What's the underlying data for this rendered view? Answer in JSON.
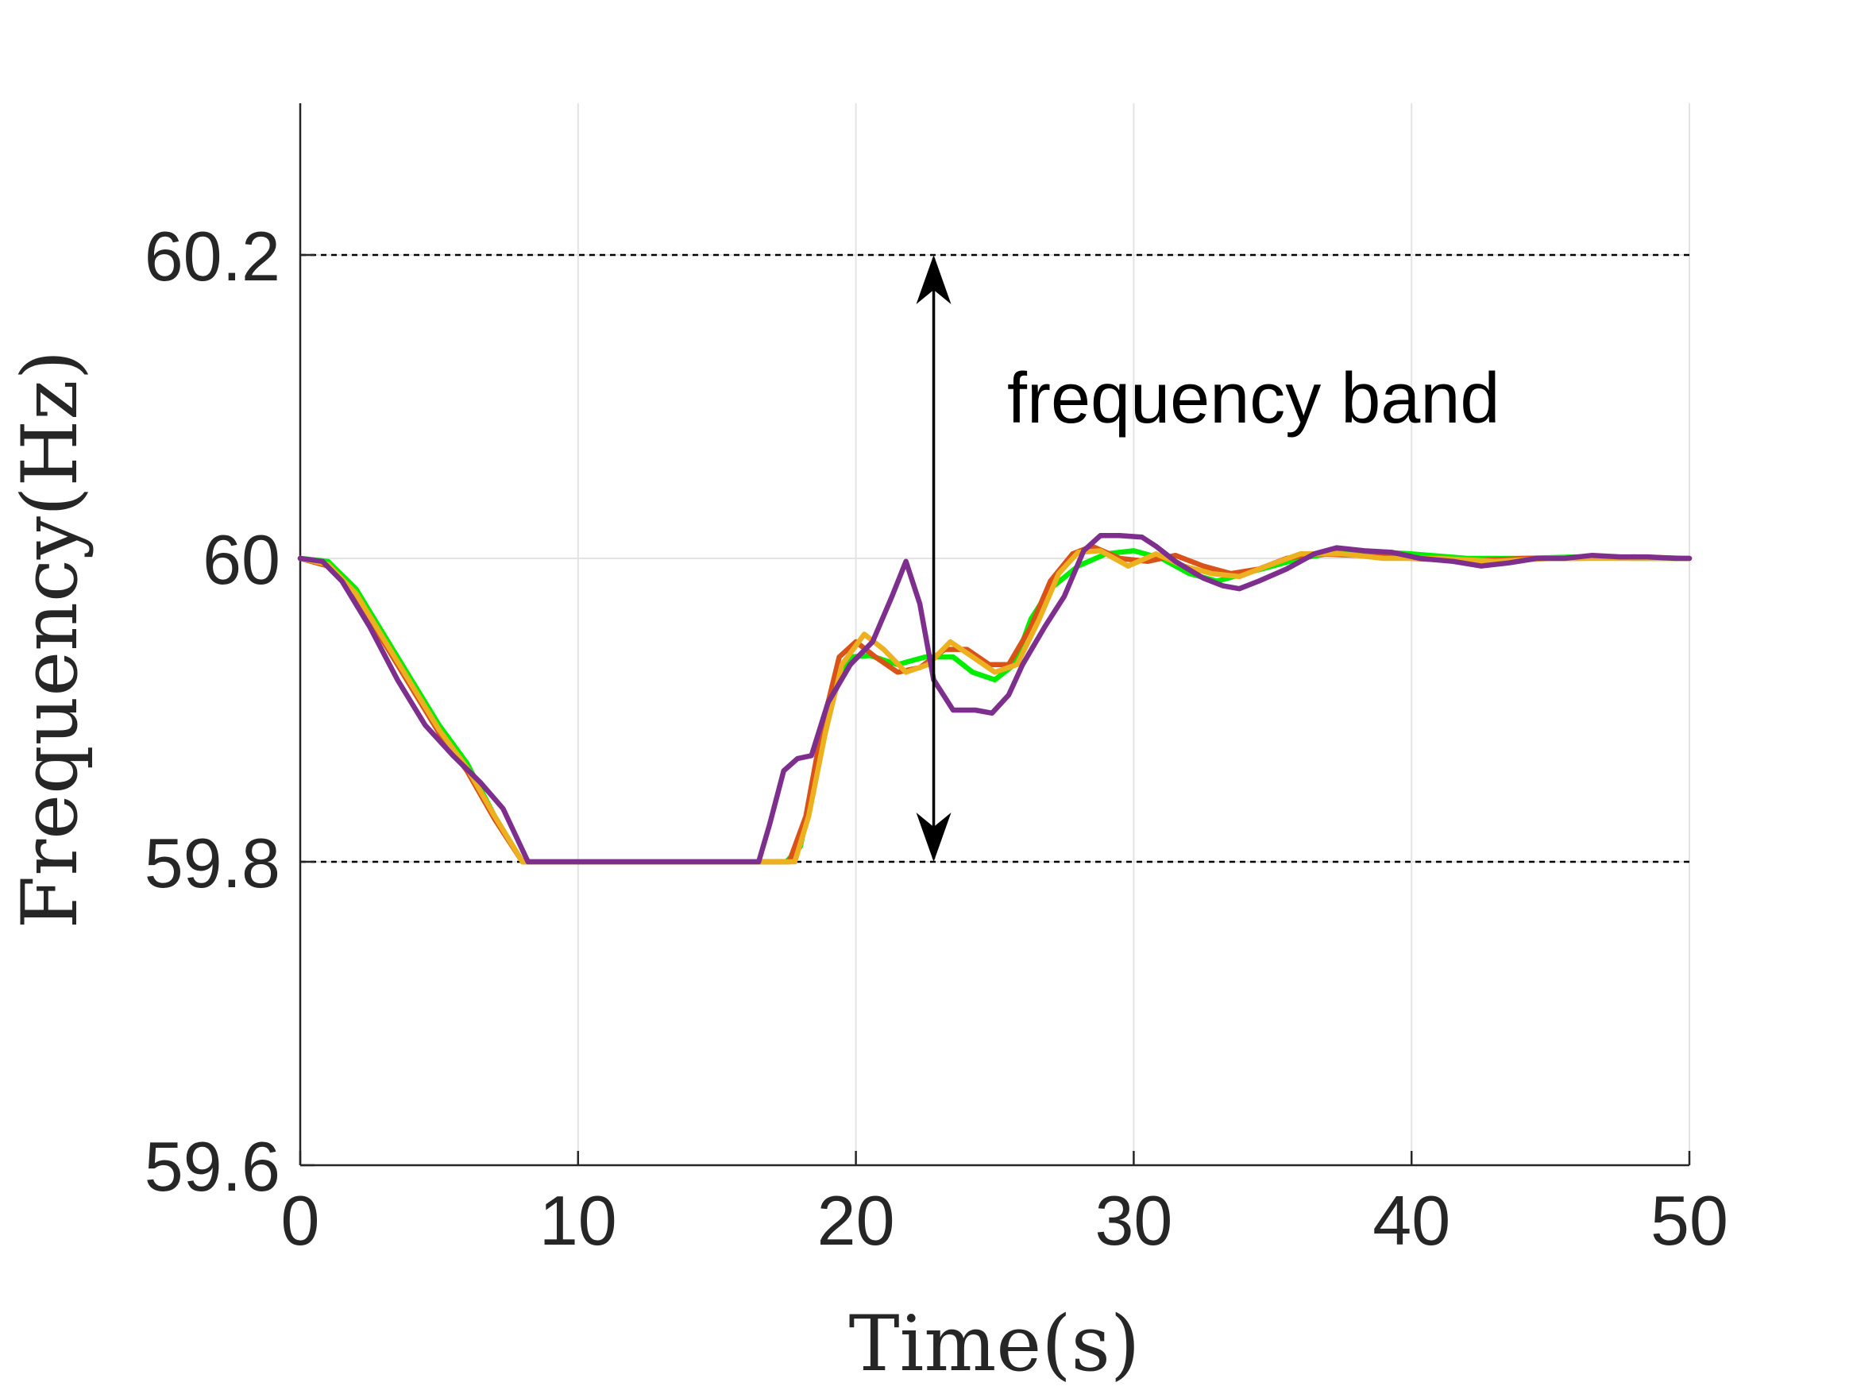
{
  "chart_data": {
    "type": "line",
    "xlabel": "Time(s)",
    "ylabel": "Frequency(Hz)",
    "xlim": [
      0,
      50
    ],
    "ylim": [
      59.6,
      60.3
    ],
    "x_ticks": [
      0,
      10,
      20,
      30,
      40,
      50
    ],
    "x_tick_labels": [
      "0",
      "10",
      "20",
      "30",
      "40",
      "50"
    ],
    "y_ticks": [
      59.6,
      59.8,
      60,
      60.2
    ],
    "y_tick_labels": [
      "59.6",
      "59.8",
      "60",
      "60.2"
    ],
    "grid": true,
    "reference_lines": [
      59.8,
      60.2
    ],
    "annotation": {
      "text": "frequency band",
      "arrow_x": 22.8,
      "arrow_from": 59.8,
      "arrow_to": 60.2
    },
    "series": [
      {
        "color": "#00ee00",
        "points": [
          [
            0,
            60
          ],
          [
            1,
            59.998
          ],
          [
            2,
            59.98
          ],
          [
            3,
            59.95
          ],
          [
            4,
            59.92
          ],
          [
            5,
            59.89
          ],
          [
            6,
            59.865
          ],
          [
            7,
            59.83
          ],
          [
            8,
            59.8
          ],
          [
            17.5,
            59.8
          ],
          [
            18,
            59.81
          ],
          [
            18.6,
            59.86
          ],
          [
            19.2,
            59.91
          ],
          [
            19.8,
            59.935
          ],
          [
            20.5,
            59.936
          ],
          [
            21.5,
            59.93
          ],
          [
            22.5,
            59.935
          ],
          [
            23.5,
            59.935
          ],
          [
            24.2,
            59.925
          ],
          [
            25,
            59.92
          ],
          [
            25.7,
            59.93
          ],
          [
            26.3,
            59.96
          ],
          [
            27,
            59.98
          ],
          [
            28,
            59.995
          ],
          [
            29,
            60.003
          ],
          [
            30,
            60.005
          ],
          [
            31,
            60.0
          ],
          [
            32,
            59.99
          ],
          [
            33,
            59.985
          ],
          [
            34,
            59.99
          ],
          [
            35,
            59.995
          ],
          [
            36,
            60.0
          ],
          [
            37,
            60.003
          ],
          [
            38,
            60.005
          ],
          [
            40,
            60.003
          ],
          [
            42,
            60.0
          ],
          [
            44,
            60.0
          ],
          [
            46,
            60.001
          ],
          [
            48,
            60.0
          ],
          [
            50,
            60.0
          ]
        ]
      },
      {
        "color": "#d95319",
        "points": [
          [
            0,
            60
          ],
          [
            1,
            59.995
          ],
          [
            2,
            59.975
          ],
          [
            3,
            59.945
          ],
          [
            4,
            59.915
          ],
          [
            5,
            59.885
          ],
          [
            6,
            59.86
          ],
          [
            7,
            59.828
          ],
          [
            8,
            59.8
          ],
          [
            17.6,
            59.8
          ],
          [
            18.2,
            59.83
          ],
          [
            18.8,
            59.89
          ],
          [
            19.4,
            59.935
          ],
          [
            20,
            59.945
          ],
          [
            20.7,
            59.935
          ],
          [
            21.5,
            59.925
          ],
          [
            22.3,
            59.928
          ],
          [
            23.2,
            59.94
          ],
          [
            24,
            59.94
          ],
          [
            24.8,
            59.93
          ],
          [
            25.5,
            59.93
          ],
          [
            26.3,
            59.955
          ],
          [
            27,
            59.985
          ],
          [
            27.8,
            60.003
          ],
          [
            28.5,
            60.008
          ],
          [
            29.5,
            60.0
          ],
          [
            30.5,
            59.998
          ],
          [
            31.5,
            60.002
          ],
          [
            32.5,
            59.995
          ],
          [
            33.5,
            59.99
          ],
          [
            34.5,
            59.993
          ],
          [
            35.5,
            60.0
          ],
          [
            36.5,
            60.003
          ],
          [
            38,
            60.002
          ],
          [
            40,
            60.0
          ],
          [
            42,
            59.998
          ],
          [
            44,
            60.0
          ],
          [
            46,
            60.0
          ],
          [
            48,
            60.001
          ],
          [
            50,
            60.0
          ]
        ]
      },
      {
        "color": "#edb120",
        "points": [
          [
            0,
            60
          ],
          [
            1,
            59.996
          ],
          [
            2,
            59.977
          ],
          [
            3,
            59.947
          ],
          [
            4,
            59.917
          ],
          [
            5,
            59.887
          ],
          [
            6,
            59.862
          ],
          [
            7,
            59.83
          ],
          [
            8,
            59.8
          ],
          [
            17.8,
            59.8
          ],
          [
            18.3,
            59.83
          ],
          [
            18.9,
            59.885
          ],
          [
            19.5,
            59.93
          ],
          [
            20.3,
            59.95
          ],
          [
            21,
            59.94
          ],
          [
            21.8,
            59.925
          ],
          [
            22.6,
            59.93
          ],
          [
            23.4,
            59.945
          ],
          [
            24.2,
            59.935
          ],
          [
            25,
            59.925
          ],
          [
            25.8,
            59.93
          ],
          [
            26.6,
            59.96
          ],
          [
            27.3,
            59.99
          ],
          [
            28,
            60.004
          ],
          [
            28.8,
            60.005
          ],
          [
            29.8,
            59.995
          ],
          [
            30.8,
            60.003
          ],
          [
            31.8,
            59.995
          ],
          [
            32.8,
            59.99
          ],
          [
            33.8,
            59.988
          ],
          [
            34.8,
            59.995
          ],
          [
            36,
            60.003
          ],
          [
            37.5,
            60.003
          ],
          [
            39,
            60.0
          ],
          [
            41,
            60.0
          ],
          [
            43,
            59.998
          ],
          [
            45,
            60.0
          ],
          [
            47,
            60.0
          ],
          [
            49,
            60.0
          ],
          [
            50,
            60.0
          ]
        ]
      },
      {
        "color": "#7e2f8e",
        "points": [
          [
            0,
            60
          ],
          [
            0.8,
            59.998
          ],
          [
            1.5,
            59.985
          ],
          [
            2.5,
            59.955
          ],
          [
            3.5,
            59.92
          ],
          [
            4.5,
            59.89
          ],
          [
            5.5,
            59.87
          ],
          [
            6.5,
            59.852
          ],
          [
            7.3,
            59.835
          ],
          [
            8.2,
            59.8
          ],
          [
            16.5,
            59.8
          ],
          [
            16.9,
            59.825
          ],
          [
            17.4,
            59.86
          ],
          [
            17.9,
            59.868
          ],
          [
            18.4,
            59.87
          ],
          [
            19,
            59.905
          ],
          [
            19.8,
            59.93
          ],
          [
            20.6,
            59.945
          ],
          [
            21.3,
            59.975
          ],
          [
            21.8,
            59.998
          ],
          [
            22.3,
            59.97
          ],
          [
            22.8,
            59.92
          ],
          [
            23.5,
            59.9
          ],
          [
            24.3,
            59.9
          ],
          [
            24.9,
            59.898
          ],
          [
            25.5,
            59.91
          ],
          [
            26,
            59.93
          ],
          [
            26.8,
            59.955
          ],
          [
            27.5,
            59.975
          ],
          [
            28.2,
            60.005
          ],
          [
            28.8,
            60.015
          ],
          [
            29.5,
            60.015
          ],
          [
            30.3,
            60.014
          ],
          [
            30.8,
            60.008
          ],
          [
            31.5,
            59.998
          ],
          [
            32.5,
            59.987
          ],
          [
            33.2,
            59.982
          ],
          [
            33.8,
            59.98
          ],
          [
            34.5,
            59.985
          ],
          [
            35.5,
            59.993
          ],
          [
            36.5,
            60.003
          ],
          [
            37.3,
            60.007
          ],
          [
            38.3,
            60.005
          ],
          [
            39.3,
            60.004
          ],
          [
            40.3,
            60.0
          ],
          [
            41.5,
            59.998
          ],
          [
            42.5,
            59.995
          ],
          [
            43.5,
            59.997
          ],
          [
            44.5,
            60.0
          ],
          [
            45.5,
            60.0
          ],
          [
            46.5,
            60.002
          ],
          [
            47.5,
            60.001
          ],
          [
            48.5,
            60.001
          ],
          [
            49.5,
            60.0
          ],
          [
            50,
            60.0
          ]
        ]
      }
    ]
  }
}
